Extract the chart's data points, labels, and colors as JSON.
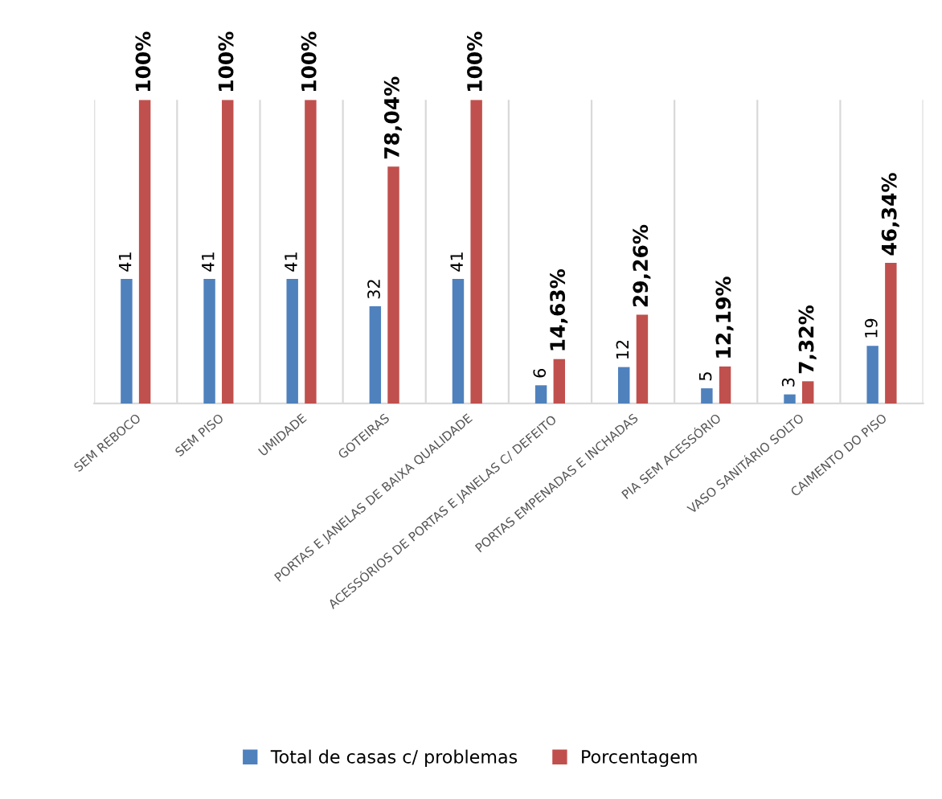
{
  "chart_data": {
    "type": "bar",
    "categories": [
      "SEM REBOCO",
      "SEM PISO",
      "UMIDADE",
      "GOTEIRAS",
      "PORTAS E JANELAS DE BAIXA QUALIDADE",
      "ACESSÓRIOS DE PORTAS E JANELAS C/ DEFEITO",
      "PORTAS EMPENADAS E INCHADAS",
      "PIA SEM ACESSÓRIO",
      "VASO SANITÁRIO SOLTO",
      "CAIMENTO DO PISO"
    ],
    "series": [
      {
        "name": "Total de casas c/ problemas",
        "color": "#4f81bd",
        "values": [
          41,
          41,
          41,
          32,
          41,
          6,
          12,
          5,
          3,
          19
        ],
        "value_labels": [
          "41",
          "41",
          "41",
          "32",
          "41",
          "6",
          "12",
          "5",
          "3",
          "19"
        ]
      },
      {
        "name": "Porcentagem",
        "color": "#c0504d",
        "values": [
          100,
          100,
          100,
          78.04,
          100,
          14.63,
          29.26,
          12.19,
          7.32,
          46.34
        ],
        "value_labels": [
          "100%",
          "100%",
          "100%",
          "78,04%",
          "100%",
          "14,63%",
          "29,26%",
          "12,19%",
          "7,32%",
          "46,34%"
        ]
      }
    ],
    "grid": "x",
    "legend": "bottom",
    "tick_labels": "x"
  }
}
